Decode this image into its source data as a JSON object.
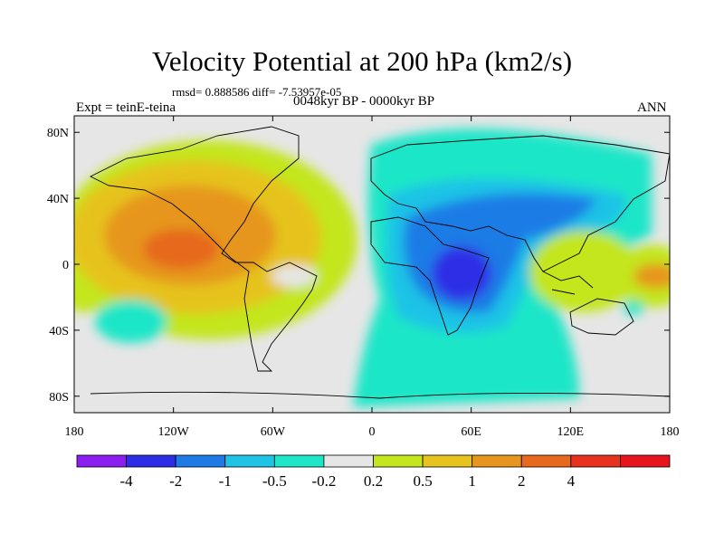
{
  "title": "Velocity Potential at 200 hPa (km2/s)",
  "stats_line": "rmsd= 0.888586 diff= -7.53957e-05",
  "experiment": "Expt = teinE-teina",
  "period": "0048kyr BP - 0000kyr BP",
  "season": "ANN",
  "map": {
    "lon_ticks": [
      "180",
      "120W",
      "60W",
      "0",
      "60E",
      "120E",
      "180"
    ],
    "lat_ticks": [
      "80N",
      "40N",
      "0",
      "40S",
      "80S"
    ],
    "background_color": "#e6e6e6"
  },
  "colorbar": {
    "colors": [
      "#8b1ff0",
      "#2d2de6",
      "#1e7be6",
      "#1ec3e6",
      "#1ee6c8",
      "#e6e6e6",
      "#c3e61e",
      "#e6c31e",
      "#e6961e",
      "#e6691e",
      "#e6321e",
      "#e6141e"
    ],
    "labels": [
      "-4",
      "-2",
      "-1",
      "-0.5",
      "-0.2",
      "0.2",
      "0.5",
      "1",
      "2",
      "4"
    ]
  }
}
